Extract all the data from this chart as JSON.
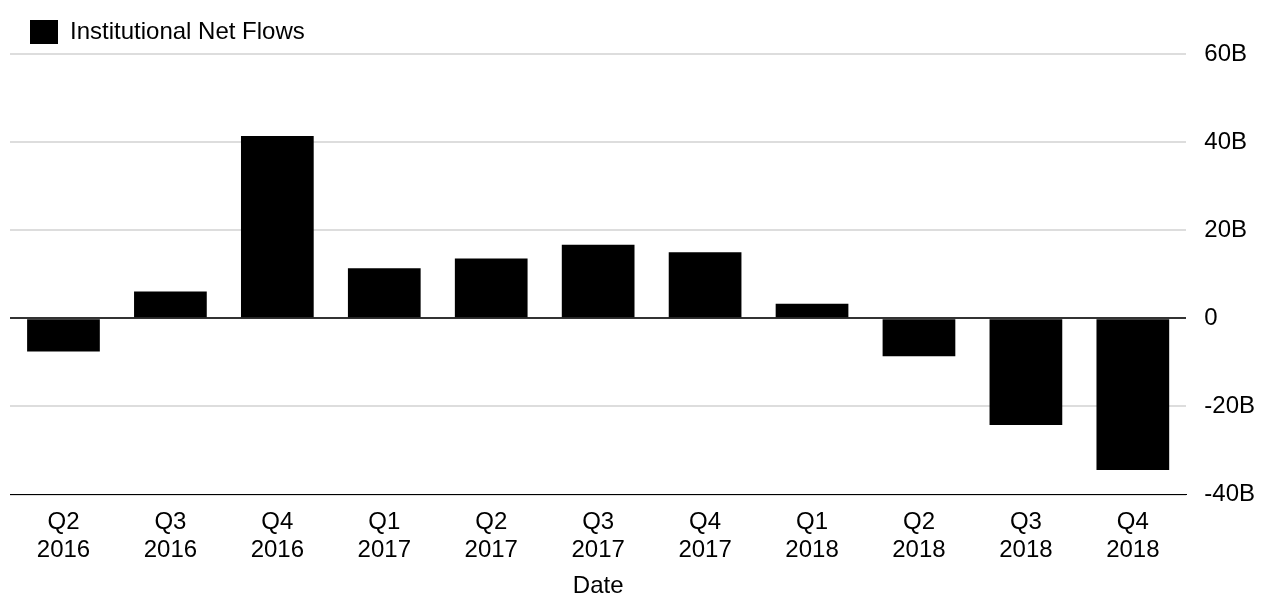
{
  "chart_data": {
    "type": "bar",
    "xlabel": "Date",
    "categories": [
      "Q2\n2016",
      "Q3\n2016",
      "Q4\n2016",
      "Q1\n2017",
      "Q2\n2017",
      "Q3\n2017",
      "Q4\n2017",
      "Q1\n2018",
      "Q2\n2018",
      "Q3\n2018",
      "Q4\n2018"
    ],
    "series": [
      {
        "name": "Institutional Net Flows",
        "color": "#000000",
        "values": [
          -7.5,
          6.1,
          41.4,
          11.4,
          13.6,
          16.7,
          15,
          3.3,
          -8.6,
          -24.2,
          -34.4
        ]
      }
    ],
    "ylim": [
      -40,
      60
    ],
    "yticks": [
      {
        "value": -40,
        "label": "-40B"
      },
      {
        "value": -20,
        "label": "-20B"
      },
      0,
      {
        "value": 20,
        "label": "20B"
      },
      {
        "value": 40,
        "label": "40B"
      },
      {
        "value": 60,
        "label": "60B"
      }
    ],
    "grid": "y",
    "legend": "top left"
  }
}
